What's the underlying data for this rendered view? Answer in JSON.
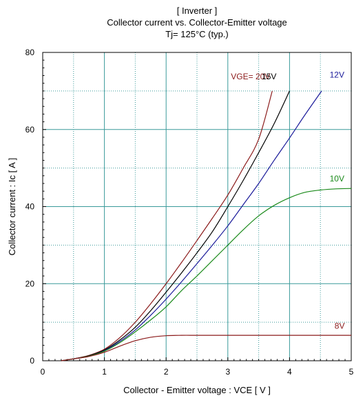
{
  "chart_data": {
    "type": "line",
    "title": [
      "[ Inverter ]",
      "Collector current  vs.  Collector-Emitter voltage",
      "Tj= 125°C  (typ.)"
    ],
    "xlabel": "Collector - Emitter voltage  :  VCE  [ V ]",
    "ylabel": "Collector current  :  Ic  [ A ]",
    "xlim": [
      0,
      5
    ],
    "ylim": [
      0,
      80
    ],
    "xticks": [
      0,
      1,
      2,
      3,
      4,
      5
    ],
    "yticks": [
      0,
      20,
      40,
      60,
      80
    ],
    "xtick_labels": [
      "0",
      "1",
      "2",
      "3",
      "4",
      "5"
    ],
    "ytick_labels": [
      "0",
      "20",
      "40",
      "60",
      "80"
    ],
    "grid": true,
    "series": [
      {
        "name": "VGE= 20V",
        "color": "#8b1a1a",
        "label_pos": [
          3.05,
          73
        ],
        "points": [
          [
            0.3,
            0
          ],
          [
            0.5,
            0.5
          ],
          [
            0.75,
            1.4
          ],
          [
            1.0,
            3.0
          ],
          [
            1.25,
            6.0
          ],
          [
            1.5,
            10.0
          ],
          [
            1.75,
            14.8
          ],
          [
            2.0,
            20.0
          ],
          [
            2.25,
            25.5
          ],
          [
            2.5,
            31.2
          ],
          [
            2.75,
            37.0
          ],
          [
            3.0,
            43.0
          ],
          [
            3.25,
            50.0
          ],
          [
            3.5,
            57.5
          ],
          [
            3.72,
            70.0
          ]
        ]
      },
      {
        "name": "15V",
        "color": "#000000",
        "label_pos": [
          3.55,
          73
        ],
        "points": [
          [
            0.3,
            0
          ],
          [
            0.5,
            0.5
          ],
          [
            0.75,
            1.3
          ],
          [
            1.0,
            2.8
          ],
          [
            1.25,
            5.4
          ],
          [
            1.5,
            8.7
          ],
          [
            1.75,
            13.0
          ],
          [
            2.0,
            17.8
          ],
          [
            2.25,
            22.8
          ],
          [
            2.5,
            28.0
          ],
          [
            2.75,
            33.5
          ],
          [
            3.0,
            40.0
          ],
          [
            3.25,
            46.8
          ],
          [
            3.5,
            54.0
          ],
          [
            3.75,
            61.5
          ],
          [
            4.0,
            70.0
          ]
        ]
      },
      {
        "name": "12V",
        "color": "#1a1a9a",
        "label_pos": [
          4.65,
          73.5
        ],
        "points": [
          [
            0.3,
            0
          ],
          [
            0.5,
            0.5
          ],
          [
            0.75,
            1.2
          ],
          [
            1.0,
            2.6
          ],
          [
            1.25,
            5.0
          ],
          [
            1.5,
            8.0
          ],
          [
            1.75,
            11.8
          ],
          [
            2.0,
            16.0
          ],
          [
            2.25,
            20.5
          ],
          [
            2.5,
            25.2
          ],
          [
            2.75,
            30.0
          ],
          [
            3.0,
            35.0
          ],
          [
            3.25,
            40.5
          ],
          [
            3.5,
            46.0
          ],
          [
            3.75,
            52.0
          ],
          [
            4.0,
            57.8
          ],
          [
            4.25,
            63.8
          ],
          [
            4.52,
            70.0
          ]
        ]
      },
      {
        "name": "10V",
        "color": "#1a8a1a",
        "label_pos": [
          4.65,
          46.5
        ],
        "points": [
          [
            0.3,
            0
          ],
          [
            0.5,
            0.5
          ],
          [
            0.75,
            1.2
          ],
          [
            1.0,
            2.5
          ],
          [
            1.25,
            4.7
          ],
          [
            1.5,
            7.5
          ],
          [
            1.75,
            10.6
          ],
          [
            2.0,
            14.0
          ],
          [
            2.25,
            18.2
          ],
          [
            2.5,
            22.0
          ],
          [
            2.75,
            26.0
          ],
          [
            3.0,
            30.0
          ],
          [
            3.25,
            34.0
          ],
          [
            3.5,
            37.6
          ],
          [
            3.75,
            40.3
          ],
          [
            4.0,
            42.3
          ],
          [
            4.25,
            43.7
          ],
          [
            4.5,
            44.3
          ],
          [
            4.75,
            44.6
          ],
          [
            5.0,
            44.7
          ]
        ]
      },
      {
        "name": "8V",
        "color": "#8b1a1a",
        "label_pos": [
          4.73,
          8.3
        ],
        "points": [
          [
            0.3,
            0
          ],
          [
            0.5,
            0.5
          ],
          [
            0.75,
            1.1
          ],
          [
            1.0,
            2.2
          ],
          [
            1.25,
            3.8
          ],
          [
            1.5,
            5.2
          ],
          [
            1.75,
            6.1
          ],
          [
            2.0,
            6.5
          ],
          [
            2.25,
            6.6
          ],
          [
            2.5,
            6.6
          ],
          [
            3.0,
            6.6
          ],
          [
            3.5,
            6.6
          ],
          [
            4.0,
            6.6
          ],
          [
            4.5,
            6.6
          ],
          [
            5.0,
            6.6
          ]
        ]
      }
    ]
  }
}
